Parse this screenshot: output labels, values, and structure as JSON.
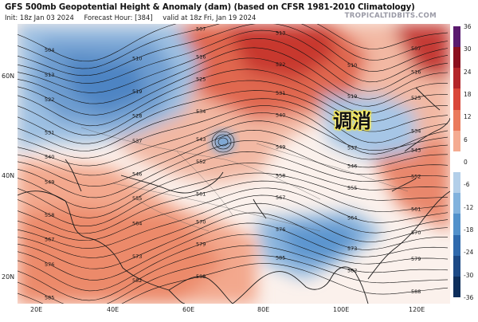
{
  "header": {
    "title": "GFS 500mb Geopotential Height & Anomaly (dam) (based on CFSR 1981-2010 Climatology)",
    "init": "Init: 18z Jan 03 2024",
    "forecast_hour": "Forecast Hour: [384]",
    "valid": "valid at 18z Fri, Jan 19 2024",
    "brand": "TROPICALTIDBITS.COM"
  },
  "overlay_text": "调消",
  "colorbar": {
    "labels": [
      "36",
      "30",
      "24",
      "18",
      "12",
      "6",
      "0",
      "-6",
      "-12",
      "-18",
      "-24",
      "-30",
      "-36"
    ],
    "colors": [
      "#5a1a6e",
      "#8a0f1e",
      "#b3262a",
      "#d9473a",
      "#ea7a5c",
      "#f4ab91",
      "#ffffff",
      "#b3cfe9",
      "#82b2dd",
      "#5291cb",
      "#2f6aad",
      "#1c4a86",
      "#0e2f5c"
    ]
  },
  "lat_labels": [
    "60N",
    "40N",
    "20N"
  ],
  "lon_labels": [
    "20E",
    "40E",
    "60E",
    "80E",
    "100E",
    "120E"
  ],
  "contour_labels": [
    "504",
    "507",
    "510",
    "513",
    "516",
    "519",
    "522",
    "525",
    "528",
    "531",
    "534",
    "537",
    "540",
    "543",
    "546",
    "549",
    "552",
    "555",
    "558",
    "561",
    "564",
    "567",
    "570",
    "573",
    "576",
    "579",
    "582",
    "585",
    "588"
  ]
}
